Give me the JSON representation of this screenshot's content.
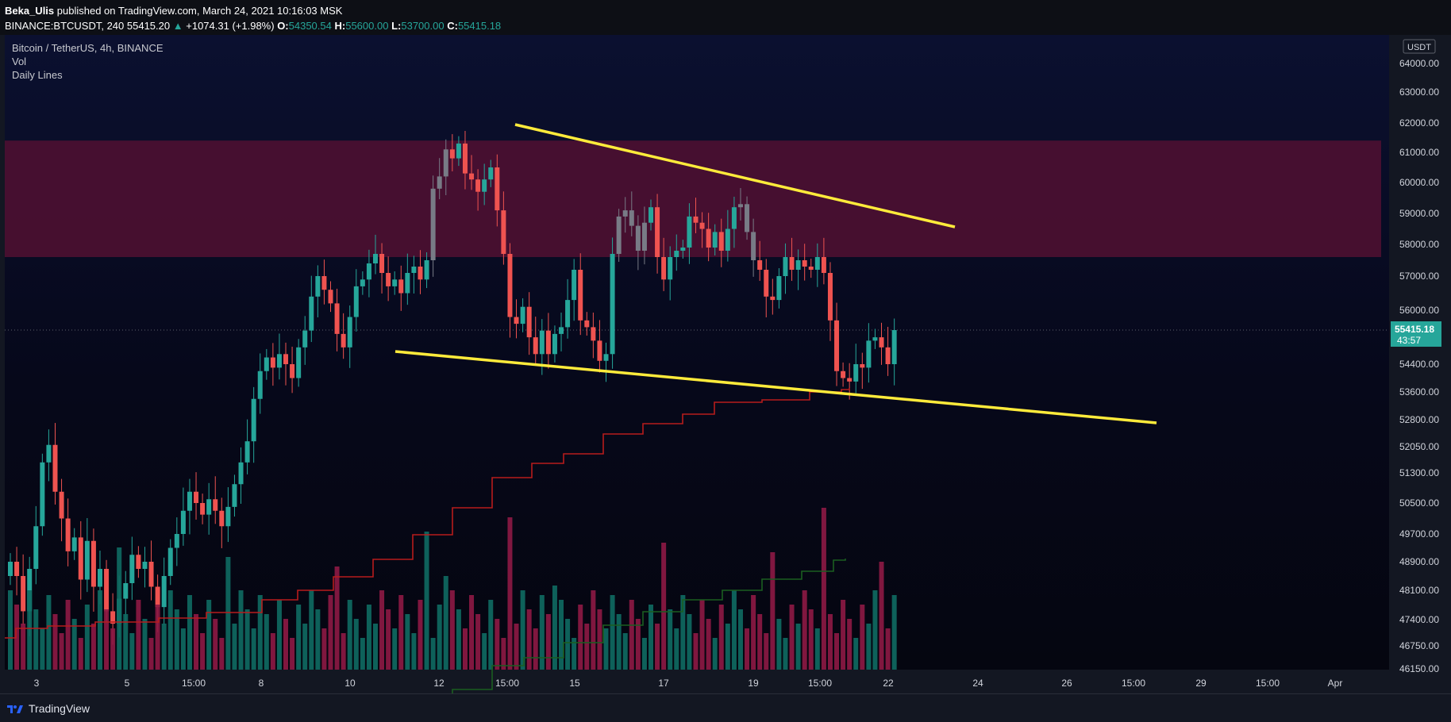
{
  "header": {
    "publisher": "Beka_Ulis",
    "published_text": "published on TradingView.com, March 24, 2021 10:16:03 MSK",
    "symbol": "BINANCE:BTCUSDT, 240",
    "last": "55415.20",
    "change": "+1074.31 (+1.98%)",
    "open_label": "O:",
    "open": "54350.54",
    "high_label": "H:",
    "high": "55600.00",
    "low_label": "L:",
    "low": "53700.00",
    "close_label": "C:",
    "close": "55415.18"
  },
  "legend": {
    "title": "Bitcoin / TetherUS, 4h, BINANCE",
    "vol": "Vol",
    "indicator": "Daily Lines"
  },
  "footer": {
    "brand": "TradingView"
  },
  "colors": {
    "up": "#26a69a",
    "down": "#ef5350",
    "neutral": "#787b86",
    "vol_up": "#0f6b63",
    "vol_down": "#8e1a45",
    "zone": "#4a1030",
    "trendline": "#ffeb3b",
    "daily_red": "#b71c1c",
    "daily_green": "#1b5e20",
    "price_tag": "#26a69a"
  },
  "chart_data": {
    "type": "candlestick",
    "currency": "USDT",
    "y_ticks": [
      "64000.00",
      "63000.00",
      "62000.00",
      "61000.00",
      "60000.00",
      "59000.00",
      "58000.00",
      "57000.00",
      "56000.00",
      "55415.18",
      "54400.00",
      "53600.00",
      "52800.00",
      "52050.00",
      "51300.00",
      "50500.00",
      "49700.00",
      "48900.00",
      "48100.00",
      "47400.00",
      "46750.00",
      "46150.00"
    ],
    "x_ticks": [
      "3",
      "5",
      "15:00",
      "8",
      "10",
      "12",
      "15:00",
      "15",
      "17",
      "19",
      "15:00",
      "22",
      "24",
      "26",
      "15:00",
      "29",
      "15:00",
      "Apr"
    ],
    "last_price": "55415.18",
    "countdown": "43:57",
    "resistance_zone": [
      57600,
      61400
    ],
    "trendline_upper": [
      [
        0.0,
        61950
      ],
      [
        1.0,
        58600
      ]
    ],
    "trendline_lower": [
      [
        0.0,
        54950
      ],
      [
        1.0,
        52750
      ]
    ],
    "candles_summary": {
      "start": 48500,
      "peak": 61800,
      "last": 55415.18
    }
  }
}
